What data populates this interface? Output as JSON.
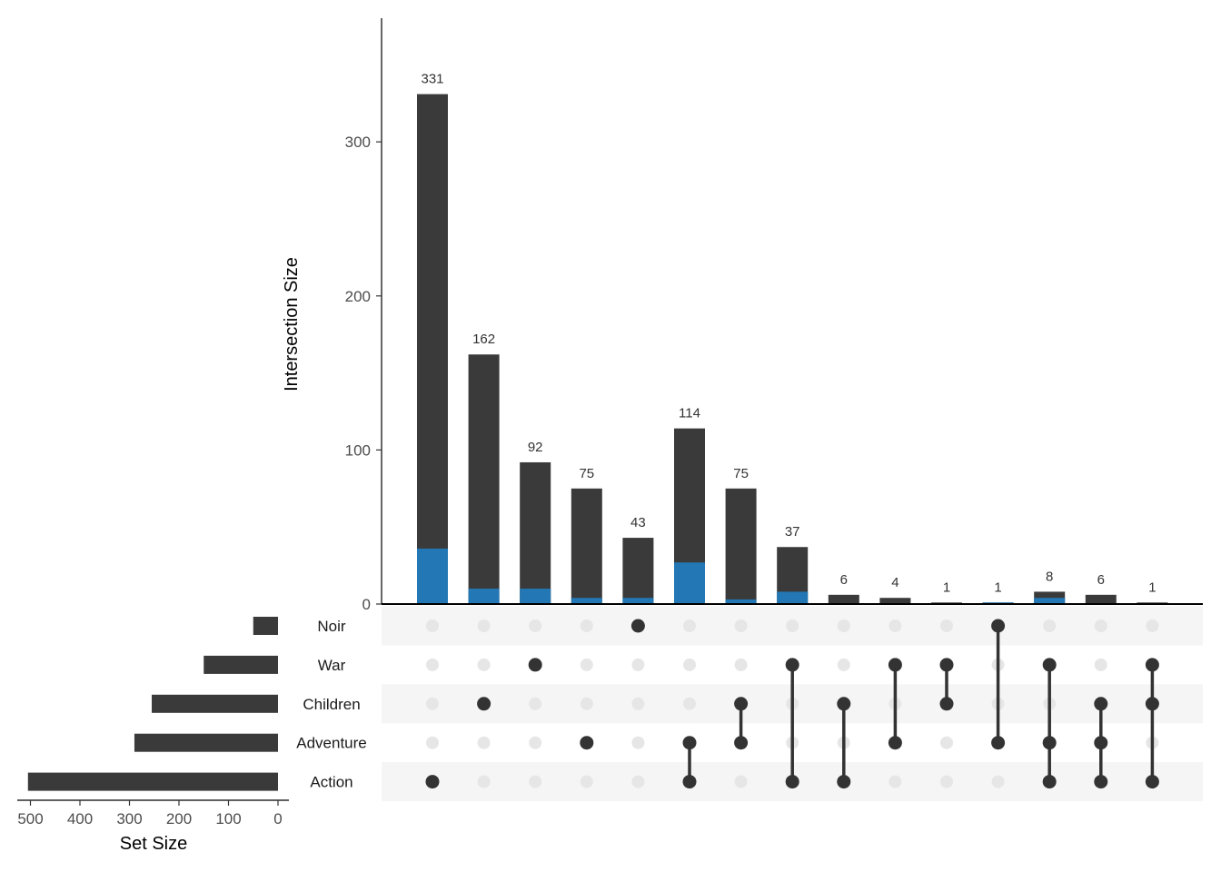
{
  "chart_data": {
    "type": "upset",
    "ylabel": "Intersection Size",
    "set_size_label": "Set Size",
    "sets": [
      "Noir",
      "War",
      "Children",
      "Adventure",
      "Action"
    ],
    "set_sizes": [
      50,
      150,
      255,
      290,
      505
    ],
    "set_size_ticks": [
      500,
      400,
      300,
      200,
      100,
      0
    ],
    "yticks": [
      0,
      100,
      200,
      300
    ],
    "ylim": [
      0,
      380
    ],
    "intersections": [
      {
        "sets": [
          "Action"
        ],
        "total": 331,
        "highlight": 36
      },
      {
        "sets": [
          "Children"
        ],
        "total": 162,
        "highlight": 10
      },
      {
        "sets": [
          "War"
        ],
        "total": 92,
        "highlight": 10
      },
      {
        "sets": [
          "Adventure"
        ],
        "total": 75,
        "highlight": 4
      },
      {
        "sets": [
          "Noir"
        ],
        "total": 43,
        "highlight": 4
      },
      {
        "sets": [
          "Adventure",
          "Action"
        ],
        "total": 114,
        "highlight": 27
      },
      {
        "sets": [
          "Children",
          "Adventure"
        ],
        "total": 75,
        "highlight": 3
      },
      {
        "sets": [
          "War",
          "Action"
        ],
        "total": 37,
        "highlight": 8
      },
      {
        "sets": [
          "Children",
          "Action"
        ],
        "total": 6,
        "highlight": 0
      },
      {
        "sets": [
          "War",
          "Adventure"
        ],
        "total": 4,
        "highlight": 0
      },
      {
        "sets": [
          "War",
          "Children"
        ],
        "total": 1,
        "highlight": 0
      },
      {
        "sets": [
          "Noir",
          "Adventure"
        ],
        "total": 1,
        "highlight": 1
      },
      {
        "sets": [
          "War",
          "Adventure",
          "Action"
        ],
        "total": 8,
        "highlight": 4
      },
      {
        "sets": [
          "Children",
          "Adventure",
          "Action"
        ],
        "total": 6,
        "highlight": 0
      },
      {
        "sets": [
          "War",
          "Children",
          "Action"
        ],
        "total": 1,
        "highlight": 0
      }
    ],
    "colors": {
      "bar": "#3a3a3a",
      "highlight": "#2277b4",
      "dot_active": "#333333",
      "dot_inactive": "#e6e6e6",
      "stripe": "#f5f5f5"
    }
  }
}
